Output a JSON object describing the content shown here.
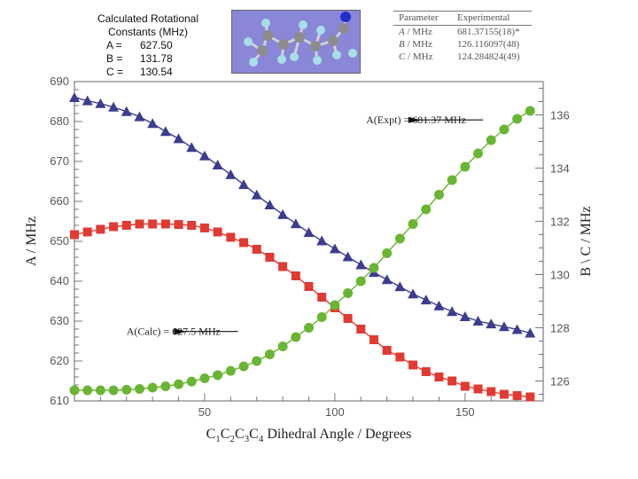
{
  "calculated_box": {
    "title_line1": "Calculated Rotational",
    "title_line2": "Constants (MHz)",
    "rows": [
      {
        "label": "A =",
        "value": "627.50"
      },
      {
        "label": "B =",
        "value": "131.78"
      },
      {
        "label": "C =",
        "value": "130.54"
      }
    ]
  },
  "param_table": {
    "headers": [
      "Parameter",
      "Experimental"
    ],
    "rows": [
      {
        "sym": "A",
        "unit": " / MHz",
        "value": "681.37155(18)*"
      },
      {
        "sym": "B",
        "unit": " / MHz",
        "value": "126.116097(48)"
      },
      {
        "sym": "C",
        "unit": " / MHz",
        "value": "124.284824(49)"
      }
    ]
  },
  "chart_data": {
    "type": "scatter",
    "title": "",
    "xlabel": "C1C2C3C4 Dihedral Angle / Degrees",
    "xlabel_parts": [
      {
        "t": "C",
        "sub": false
      },
      {
        "t": "1",
        "sub": true
      },
      {
        "t": "C",
        "sub": false
      },
      {
        "t": "2",
        "sub": true
      },
      {
        "t": "C",
        "sub": false
      },
      {
        "t": "3",
        "sub": true
      },
      {
        "t": "C",
        "sub": false
      },
      {
        "t": "4",
        "sub": true
      },
      {
        "t": " Dihedral Angle / Degrees",
        "sub": false
      }
    ],
    "ylabel_left": "A / MHz",
    "ylabel_right": "B \\ C / MHz",
    "xlim": [
      0,
      180
    ],
    "ylim_left": [
      610,
      690
    ],
    "ylim_right": [
      125.25,
      137.25
    ],
    "xticks": [
      50,
      100,
      150
    ],
    "yticks_left": [
      610,
      620,
      630,
      640,
      650,
      660,
      670,
      680,
      690
    ],
    "yticks_right": [
      126,
      128,
      130,
      132,
      134,
      136
    ],
    "colors": {
      "A": "#3c3d8e",
      "B": "#e03a33",
      "C": "#6ab534"
    },
    "series": [
      {
        "name": "A",
        "axis": "left",
        "marker": "triangle",
        "x": [
          0,
          5,
          10,
          15,
          20,
          25,
          30,
          35,
          40,
          45,
          50,
          55,
          60,
          65,
          70,
          75,
          80,
          85,
          90,
          95,
          100,
          105,
          110,
          115,
          120,
          125,
          130,
          135,
          140,
          145,
          150,
          155,
          160,
          165,
          170,
          175
        ],
        "values": [
          686,
          685.2,
          684.5,
          683.6,
          682.5,
          681.2,
          679.5,
          677.5,
          675.7,
          673.5,
          671.4,
          669.1,
          666.7,
          664.2,
          661.6,
          659.1,
          656.7,
          654.4,
          652.2,
          650.1,
          648.1,
          646.1,
          644.1,
          642.2,
          640.4,
          638.6,
          636.8,
          635.3,
          633.8,
          632.4,
          631.1,
          630,
          629.3,
          628.6,
          627.9,
          627
        ]
      },
      {
        "name": "B",
        "axis": "right",
        "marker": "square",
        "x": [
          0,
          5,
          10,
          15,
          20,
          25,
          30,
          35,
          40,
          45,
          50,
          55,
          60,
          65,
          70,
          75,
          80,
          85,
          90,
          95,
          100,
          105,
          110,
          115,
          120,
          125,
          130,
          135,
          140,
          145,
          150,
          155,
          160,
          165,
          170,
          175
        ],
        "values": [
          131.5,
          131.6,
          131.7,
          131.8,
          131.85,
          131.9,
          131.9,
          131.9,
          131.88,
          131.85,
          131.75,
          131.6,
          131.4,
          131.2,
          130.95,
          130.65,
          130.3,
          129.95,
          129.55,
          129.15,
          128.75,
          128.35,
          127.95,
          127.55,
          127.15,
          126.9,
          126.6,
          126.35,
          126.15,
          126,
          125.8,
          125.7,
          125.6,
          125.5,
          125.45,
          125.4
        ]
      },
      {
        "name": "C",
        "axis": "right",
        "marker": "circle",
        "x": [
          0,
          5,
          10,
          15,
          20,
          25,
          30,
          35,
          40,
          45,
          50,
          55,
          60,
          65,
          70,
          75,
          80,
          85,
          90,
          95,
          100,
          105,
          110,
          115,
          120,
          125,
          130,
          135,
          140,
          145,
          150,
          155,
          160,
          165,
          170,
          175
        ],
        "values": [
          125.65,
          125.65,
          125.65,
          125.65,
          125.67,
          125.7,
          125.75,
          125.8,
          125.88,
          125.98,
          126.1,
          126.22,
          126.38,
          126.55,
          126.75,
          127,
          127.3,
          127.65,
          128,
          128.4,
          128.85,
          129.3,
          129.75,
          130.25,
          130.8,
          131.35,
          131.9,
          132.45,
          133,
          133.55,
          134.05,
          134.55,
          135.05,
          135.45,
          135.85,
          136.15
        ]
      }
    ],
    "annotations": [
      {
        "text": "A(Expt) = 681.37 MHz",
        "x": 112,
        "y": 680.4,
        "axis": "left",
        "arrow_to": [
          133,
          680.4
        ]
      },
      {
        "text": "A(Calc) = 627.5 MHz",
        "x": 20,
        "y": 627.4,
        "axis": "left",
        "arrow_to": [
          43,
          627.4
        ]
      }
    ]
  }
}
